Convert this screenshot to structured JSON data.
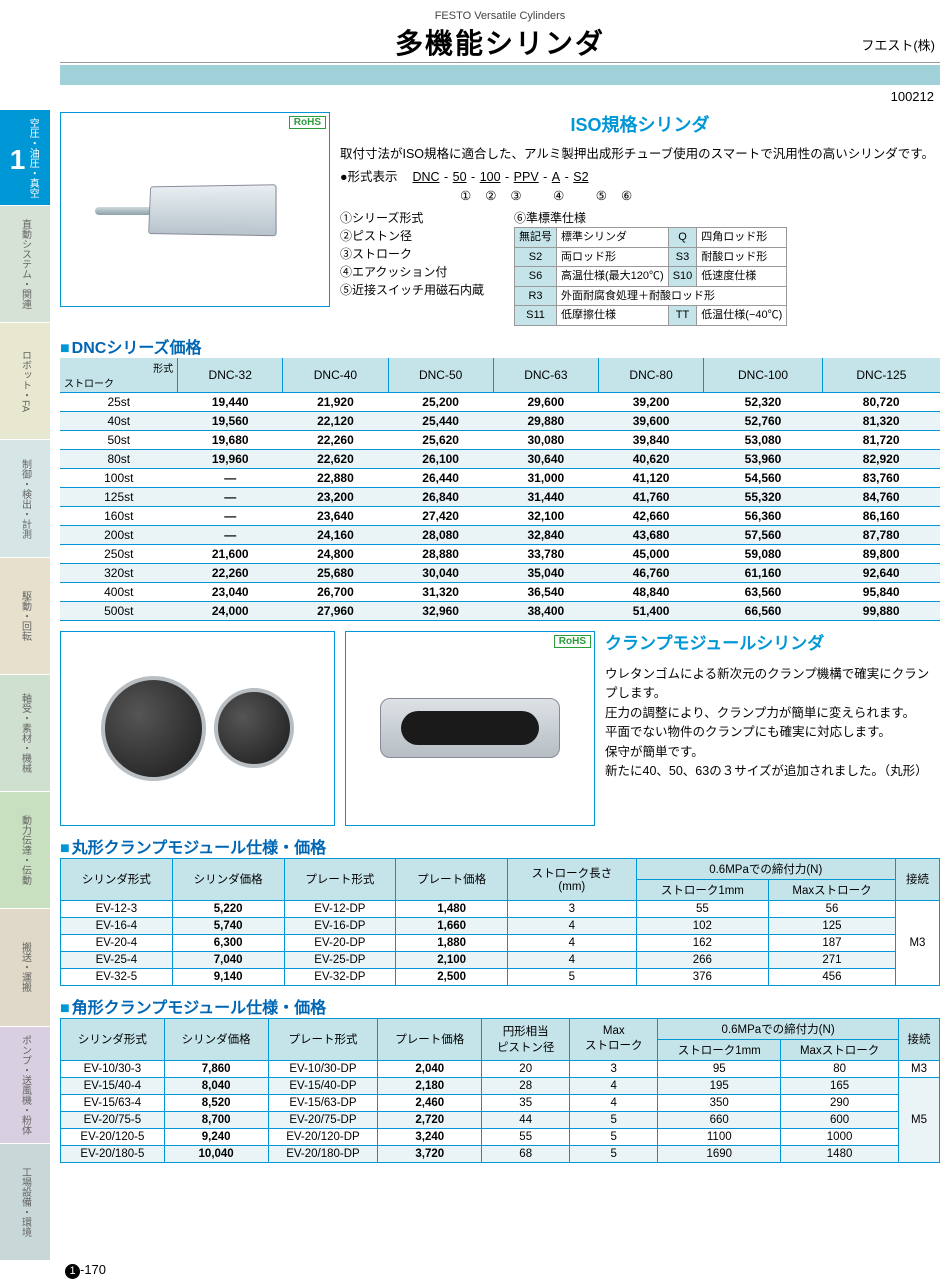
{
  "header": {
    "super": "FESTO Versatile Cylinders",
    "title": "多機能シリンダ",
    "company": "フエスト(株)",
    "code": "100212"
  },
  "sidebar": {
    "main_label": "空圧・油圧・真空",
    "main_num": "1",
    "tabs": [
      {
        "label": "直動システム・関連",
        "bg": "#d6e2d6"
      },
      {
        "label": "ロボット・FA",
        "bg": "#e8e8d0"
      },
      {
        "label": "制御・検出・計測",
        "bg": "#d6e6e6"
      },
      {
        "label": "駆動・回転",
        "bg": "#e6e0cc"
      },
      {
        "label": "軸受・素材・機械",
        "bg": "#d0e0d0"
      },
      {
        "label": "動力伝達・伝動",
        "bg": "#c8e0c0"
      },
      {
        "label": "搬送・運搬",
        "bg": "#e0d8c8"
      },
      {
        "label": "ポンプ・送風機・粉体",
        "bg": "#d8d0e0"
      },
      {
        "label": "工場設備・環境",
        "bg": "#c8d8d8"
      }
    ]
  },
  "iso": {
    "heading": "ISO規格シリンダ",
    "desc": "取付寸法がISO規格に適合した、アルミ製押出成形チューブ使用のスマートで汎用性の高いシリンダです。",
    "model_label": "●形式表示",
    "model_parts": [
      "DNC",
      "50",
      "100",
      "PPV",
      "A",
      "S2"
    ],
    "legend": [
      "①シリーズ形式",
      "②ピストン径",
      "③ストローク",
      "④エアクッション付",
      "⑤近接スイッチ用磁石内蔵"
    ],
    "stdopt_title": "⑥準標準仕様",
    "options": [
      {
        "c": "無記号",
        "t": "標準シリンダ"
      },
      {
        "c": "Q",
        "t": "四角ロッド形"
      },
      {
        "c": "S2",
        "t": "両ロッド形"
      },
      {
        "c": "S3",
        "t": "耐酸ロッド形"
      },
      {
        "c": "S6",
        "t": "高温仕様(最大120℃)"
      },
      {
        "c": "S10",
        "t": "低速度仕様"
      },
      {
        "c": "R3",
        "t": "外面耐腐食処理＋耐酸ロッド形",
        "span": 2
      },
      {
        "c": "S11",
        "t": "低摩擦仕様"
      },
      {
        "c": "TT",
        "t": "低温仕様(−40℃)"
      }
    ],
    "rohs": "RoHS"
  },
  "dnc": {
    "heading": "DNCシリーズ価格",
    "stroke_head": "ストローク",
    "type_head": "形式",
    "columns": [
      "DNC-32",
      "DNC-40",
      "DNC-50",
      "DNC-63",
      "DNC-80",
      "DNC-100",
      "DNC-125"
    ],
    "rows": [
      {
        "s": "25st",
        "v": [
          "19,440",
          "21,920",
          "25,200",
          "29,600",
          "39,200",
          "52,320",
          "80,720"
        ]
      },
      {
        "s": "40st",
        "v": [
          "19,560",
          "22,120",
          "25,440",
          "29,880",
          "39,600",
          "52,760",
          "81,320"
        ]
      },
      {
        "s": "50st",
        "v": [
          "19,680",
          "22,260",
          "25,620",
          "30,080",
          "39,840",
          "53,080",
          "81,720"
        ]
      },
      {
        "s": "80st",
        "v": [
          "19,960",
          "22,620",
          "26,100",
          "30,640",
          "40,620",
          "53,960",
          "82,920"
        ]
      },
      {
        "s": "100st",
        "v": [
          "—",
          "22,880",
          "26,440",
          "31,000",
          "41,120",
          "54,560",
          "83,760"
        ]
      },
      {
        "s": "125st",
        "v": [
          "—",
          "23,200",
          "26,840",
          "31,440",
          "41,760",
          "55,320",
          "84,760"
        ]
      },
      {
        "s": "160st",
        "v": [
          "—",
          "23,640",
          "27,420",
          "32,100",
          "42,660",
          "56,360",
          "86,160"
        ]
      },
      {
        "s": "200st",
        "v": [
          "—",
          "24,160",
          "28,080",
          "32,840",
          "43,680",
          "57,560",
          "87,780"
        ]
      },
      {
        "s": "250st",
        "v": [
          "21,600",
          "24,800",
          "28,880",
          "33,780",
          "45,000",
          "59,080",
          "89,800"
        ]
      },
      {
        "s": "320st",
        "v": [
          "22,260",
          "25,680",
          "30,040",
          "35,040",
          "46,760",
          "61,160",
          "92,640"
        ]
      },
      {
        "s": "400st",
        "v": [
          "23,040",
          "26,700",
          "31,320",
          "36,540",
          "48,840",
          "63,560",
          "95,840"
        ]
      },
      {
        "s": "500st",
        "v": [
          "24,000",
          "27,960",
          "32,960",
          "38,400",
          "51,400",
          "66,560",
          "99,880"
        ]
      }
    ]
  },
  "clamp": {
    "heading": "クランプモジュールシリンダ",
    "lines": [
      "ウレタンゴムによる新次元のクランプ機構で確実にクランプします。",
      "圧力の調整により、クランプ力が簡単に変えられます。",
      "平面でない物件のクランプにも確実に対応します。",
      "保守が簡単です。",
      "新たに40、50、63の３サイズが追加されました。（丸形）"
    ]
  },
  "round": {
    "heading": "丸形クランプモジュール仕様・価格",
    "cols": [
      "シリンダ形式",
      "シリンダ価格",
      "プレート形式",
      "プレート価格",
      "ストローク長さ\n(mm)",
      "0.6MPaでの締付力(N)",
      "接続"
    ],
    "sub": [
      "ストローク1mm",
      "Maxストローク"
    ],
    "rows": [
      [
        "EV-12-3",
        "5,220",
        "EV-12-DP",
        "1,480",
        "3",
        "55",
        "56"
      ],
      [
        "EV-16-4",
        "5,740",
        "EV-16-DP",
        "1,660",
        "4",
        "102",
        "125"
      ],
      [
        "EV-20-4",
        "6,300",
        "EV-20-DP",
        "1,880",
        "4",
        "162",
        "187"
      ],
      [
        "EV-25-4",
        "7,040",
        "EV-25-DP",
        "2,100",
        "4",
        "266",
        "271"
      ],
      [
        "EV-32-5",
        "9,140",
        "EV-32-DP",
        "2,500",
        "5",
        "376",
        "456"
      ]
    ],
    "conn": "M3"
  },
  "rect": {
    "heading": "角形クランプモジュール仕様・価格",
    "cols": [
      "シリンダ形式",
      "シリンダ価格",
      "プレート形式",
      "プレート価格",
      "円形相当\nピストン径",
      "Max\nストローク",
      "0.6MPaでの締付力(N)",
      "接続"
    ],
    "sub": [
      "ストローク1mm",
      "Maxストローク"
    ],
    "rows": [
      [
        "EV-10/30-3",
        "7,860",
        "EV-10/30-DP",
        "2,040",
        "20",
        "3",
        "95",
        "80",
        "M3"
      ],
      [
        "EV-15/40-4",
        "8,040",
        "EV-15/40-DP",
        "2,180",
        "28",
        "4",
        "195",
        "165",
        ""
      ],
      [
        "EV-15/63-4",
        "8,520",
        "EV-15/63-DP",
        "2,460",
        "35",
        "4",
        "350",
        "290",
        ""
      ],
      [
        "EV-20/75-5",
        "8,700",
        "EV-20/75-DP",
        "2,720",
        "44",
        "5",
        "660",
        "600",
        "M5"
      ],
      [
        "EV-20/120-5",
        "9,240",
        "EV-20/120-DP",
        "3,240",
        "55",
        "5",
        "1100",
        "1000",
        ""
      ],
      [
        "EV-20/180-5",
        "10,040",
        "EV-20/180-DP",
        "3,720",
        "68",
        "5",
        "1690",
        "1480",
        ""
      ]
    ]
  },
  "page": {
    "num": "1",
    "sub": "-170"
  }
}
